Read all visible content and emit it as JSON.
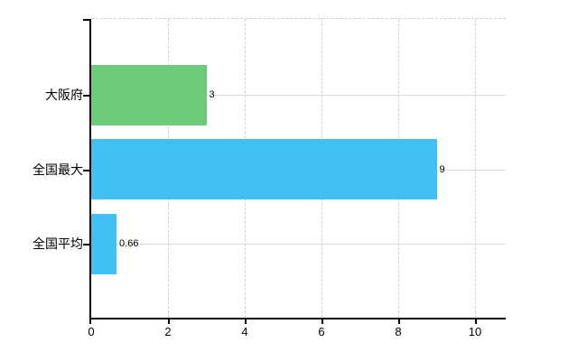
{
  "chart_data": {
    "type": "bar",
    "orientation": "horizontal",
    "title": "",
    "xlabel": "",
    "ylabel": "",
    "categories": [
      "大阪府",
      "全国最大",
      "全国平均"
    ],
    "values": [
      3,
      9,
      0.66
    ],
    "value_labels": [
      "3",
      "9",
      "0.66"
    ],
    "bar_colors": [
      "#6bcb79",
      "#40bff0",
      "#40bff0"
    ],
    "xlim": [
      0,
      10.8
    ],
    "xtick_values": [
      0,
      2,
      4,
      6,
      8,
      10
    ],
    "xtick_labels": [
      "0",
      "2",
      "4",
      "6",
      "8",
      "10"
    ],
    "grid": true,
    "legend": null,
    "colors": {
      "axis": "#000000",
      "vertical_gridline": "#cfcfcf",
      "horizontal_gridline": "#d9ddd8",
      "plot_top_border": "#cfcfcf",
      "background": "#ffffff",
      "bar_green": "#6bcb79",
      "bar_blue": "#40bff0"
    }
  }
}
